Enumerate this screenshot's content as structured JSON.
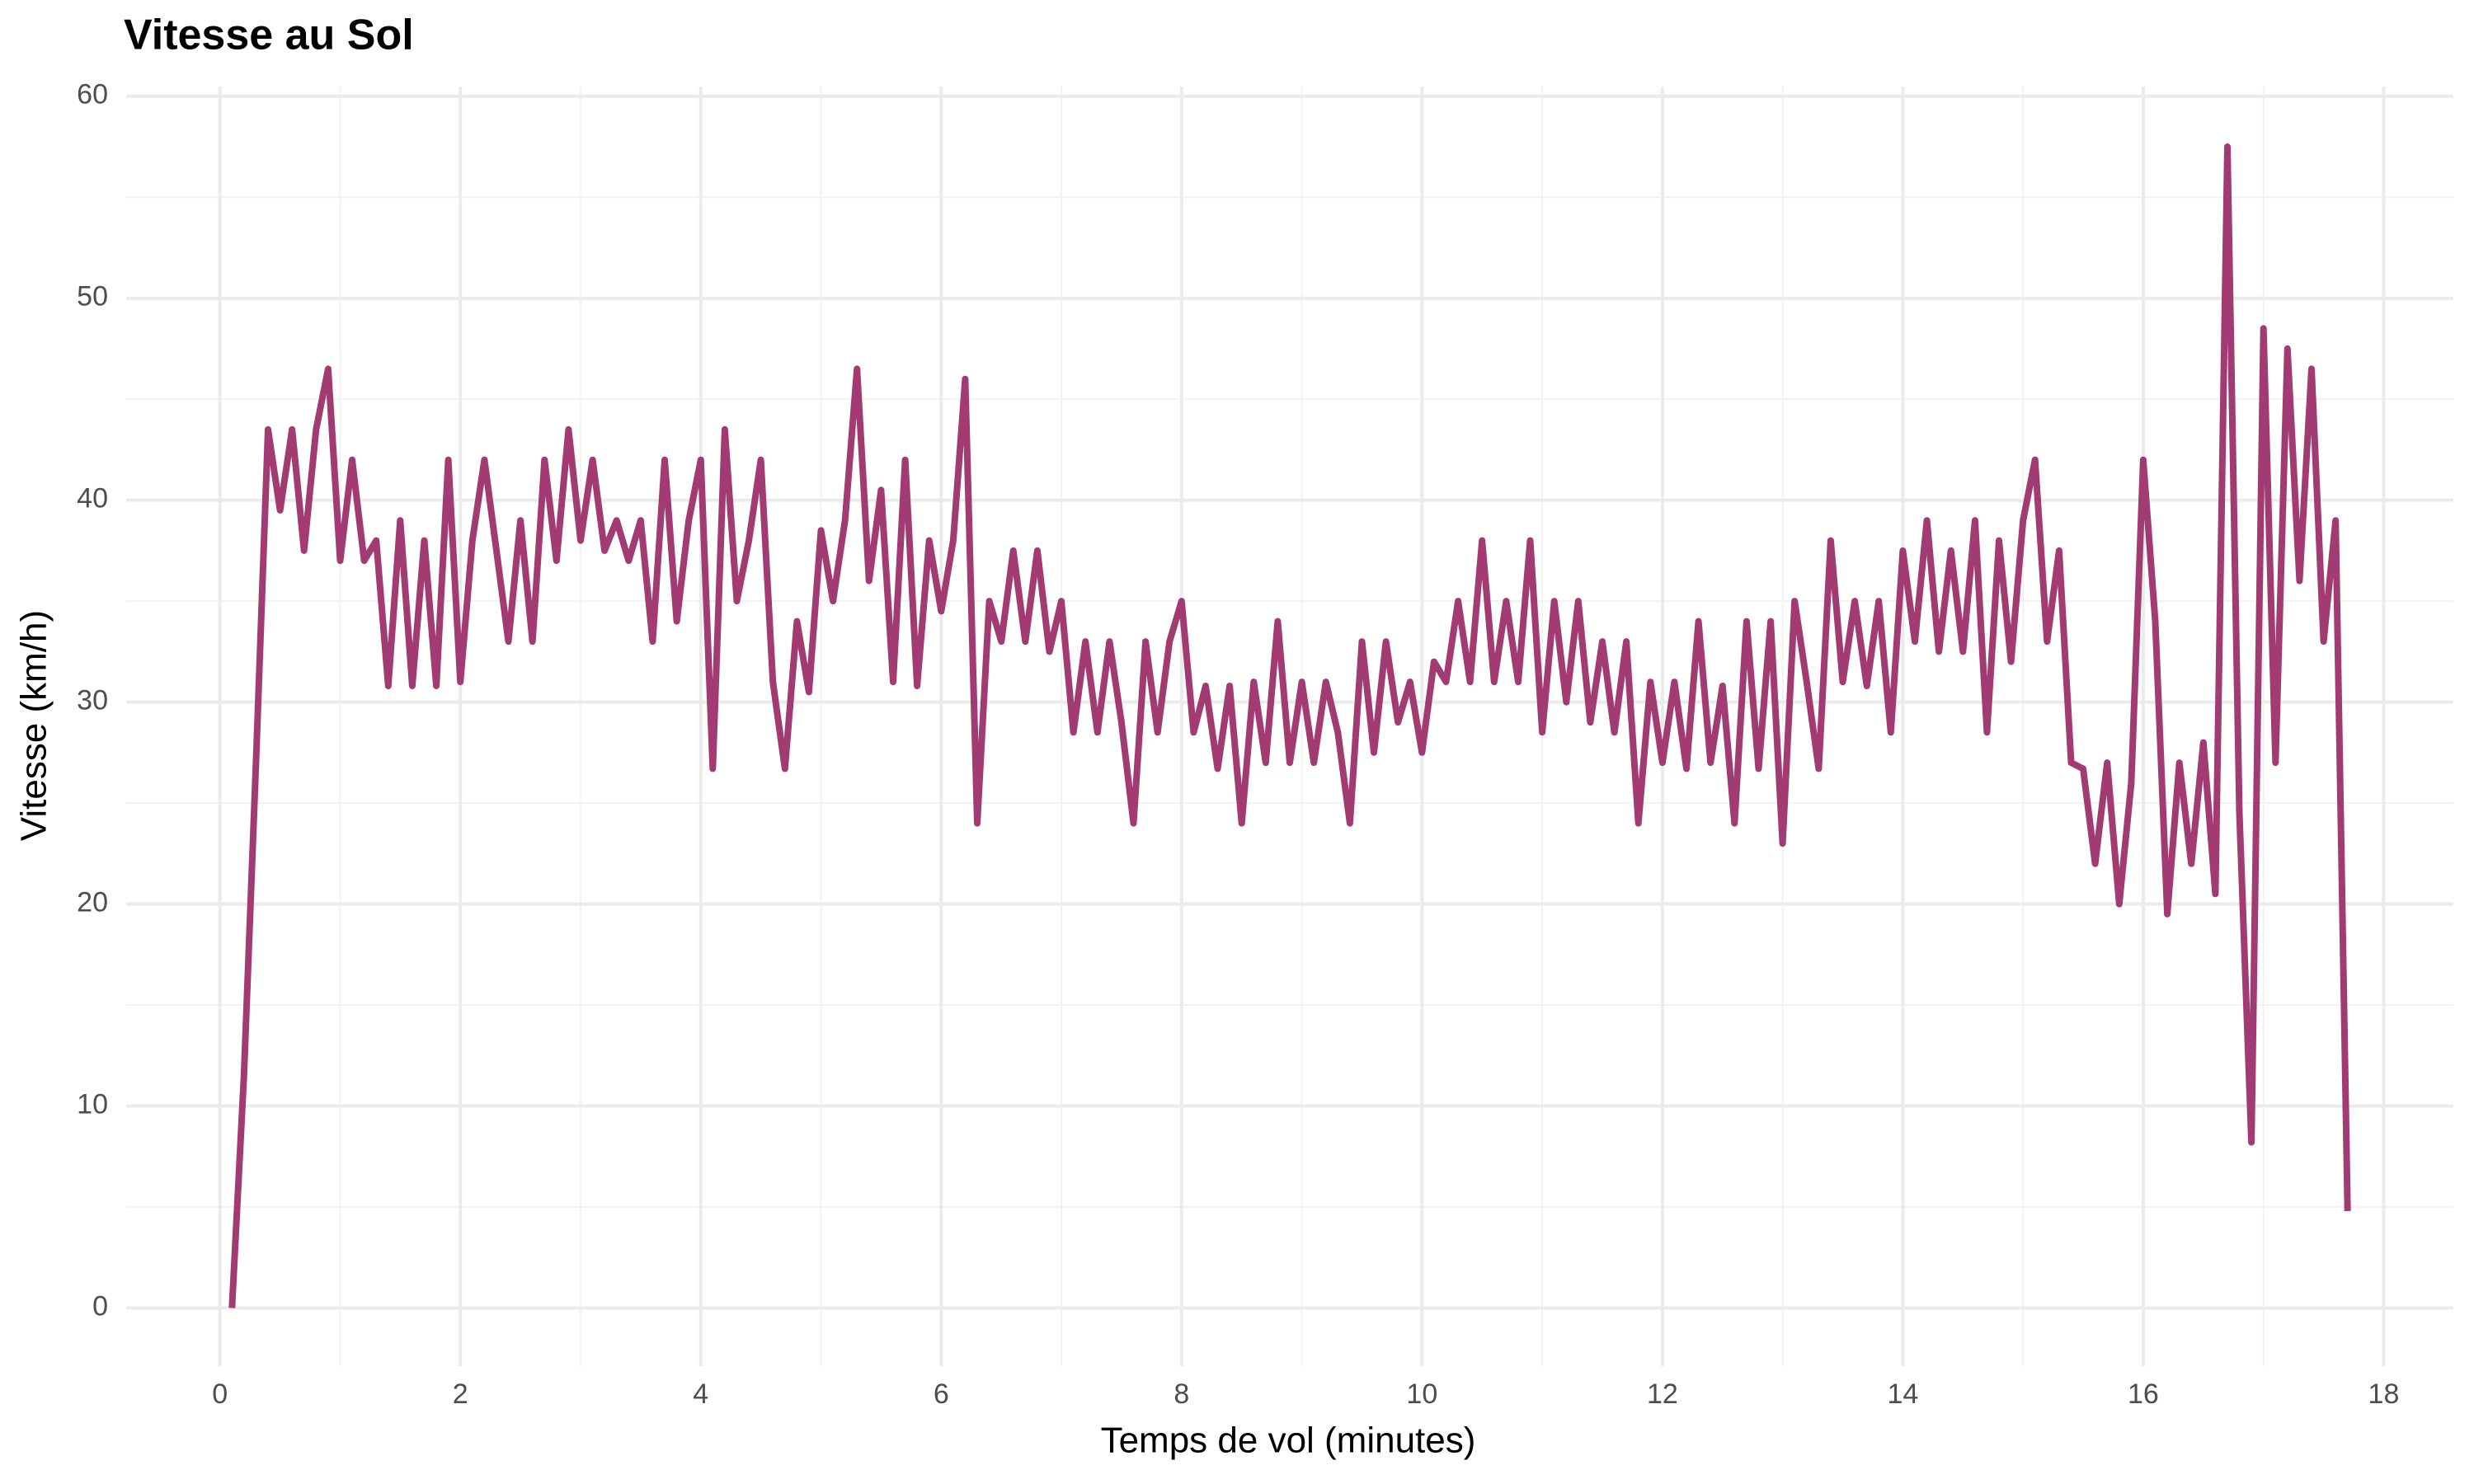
{
  "chart_data": {
    "type": "line",
    "title": "Vitesse au Sol",
    "x_label": "Temps de vol (minutes)",
    "y_label": "Vitesse (km/h)",
    "color": "#a23b72",
    "grid": true,
    "minor_grid": true,
    "xlim": [
      -0.78,
      18.58
    ],
    "ylim": [
      -2.88,
      60.48
    ],
    "xticks": [
      0,
      2,
      4,
      6,
      8,
      10,
      12,
      14,
      16,
      18
    ],
    "yticks": [
      0,
      10,
      20,
      30,
      40,
      50,
      60
    ],
    "x": [
      0.1,
      0.2,
      0.3,
      0.4,
      0.5,
      0.6,
      0.7,
      0.8,
      0.9,
      1.0,
      1.1,
      1.2,
      1.3,
      1.4,
      1.5,
      1.6,
      1.7,
      1.8,
      1.9,
      2.0,
      2.1,
      2.2,
      2.3,
      2.4,
      2.5,
      2.6,
      2.7,
      2.8,
      2.9,
      3.0,
      3.1,
      3.2,
      3.3,
      3.4,
      3.5,
      3.6,
      3.7,
      3.8,
      3.9,
      4.0,
      4.1,
      4.2,
      4.3,
      4.4,
      4.5,
      4.6,
      4.7,
      4.8,
      4.9,
      5.0,
      5.1,
      5.2,
      5.3,
      5.4,
      5.5,
      5.6,
      5.7,
      5.8,
      5.9,
      6.0,
      6.1,
      6.2,
      6.3,
      6.4,
      6.5,
      6.6,
      6.7,
      6.8,
      6.9,
      7.0,
      7.1,
      7.2,
      7.3,
      7.4,
      7.5,
      7.6,
      7.7,
      7.8,
      7.9,
      8.0,
      8.1,
      8.2,
      8.3,
      8.4,
      8.5,
      8.6,
      8.7,
      8.8,
      8.9,
      9.0,
      9.1,
      9.2,
      9.3,
      9.4,
      9.5,
      9.6,
      9.7,
      9.8,
      9.9,
      10.0,
      10.1,
      10.2,
      10.3,
      10.4,
      10.5,
      10.6,
      10.7,
      10.8,
      10.9,
      11.0,
      11.1,
      11.2,
      11.3,
      11.4,
      11.5,
      11.6,
      11.7,
      11.8,
      11.9,
      12.0,
      12.1,
      12.2,
      12.3,
      12.4,
      12.5,
      12.6,
      12.7,
      12.8,
      12.9,
      13.0,
      13.1,
      13.2,
      13.3,
      13.4,
      13.5,
      13.6,
      13.7,
      13.8,
      13.9,
      14.0,
      14.1,
      14.2,
      14.3,
      14.4,
      14.5,
      14.6,
      14.7,
      14.8,
      14.9,
      15.0,
      15.1,
      15.2,
      15.3,
      15.4,
      15.5,
      15.6,
      15.7,
      15.8,
      15.9,
      16.0,
      16.1,
      16.2,
      16.3,
      16.4,
      16.5,
      16.6,
      16.7,
      16.8,
      16.9,
      17.0,
      17.1,
      17.2,
      17.3,
      17.4,
      17.5,
      17.6,
      17.7
    ],
    "values": [
      0,
      11.5,
      27,
      43.5,
      39.5,
      43.5,
      37.5,
      43.5,
      46.5,
      37,
      42,
      37,
      38,
      30.8,
      39,
      30.8,
      38,
      30.8,
      42,
      31,
      38,
      42,
      37.5,
      33,
      39,
      33,
      42,
      37,
      43.5,
      38,
      42,
      37.5,
      39,
      37,
      39,
      33,
      42,
      34,
      39,
      42,
      26.7,
      43.5,
      35,
      38,
      42,
      31,
      26.7,
      34,
      30.5,
      38.5,
      35,
      39,
      46.5,
      36,
      40.5,
      31,
      42,
      30.8,
      38,
      34.5,
      38,
      46,
      24,
      35,
      33,
      37.5,
      33,
      37.5,
      32.5,
      35,
      28.5,
      33,
      28.5,
      33,
      29,
      24,
      33,
      28.5,
      33,
      35,
      28.5,
      30.8,
      26.7,
      30.8,
      24,
      31,
      27,
      34,
      27,
      31,
      27,
      31,
      28.5,
      24,
      33,
      27.5,
      33,
      29,
      31,
      27.5,
      32,
      31,
      35,
      31,
      38,
      31,
      35,
      31,
      38,
      28.5,
      35,
      30,
      35,
      29,
      33,
      28.5,
      33,
      24,
      31,
      27,
      31,
      26.7,
      34,
      27,
      30.8,
      24,
      34,
      26.7,
      34,
      23,
      35,
      31,
      26.7,
      38,
      31,
      35,
      30.8,
      35,
      28.5,
      37.5,
      33,
      39,
      32.5,
      37.5,
      32.5,
      39,
      28.5,
      38,
      32,
      39,
      42,
      33,
      37.5,
      27,
      26.7,
      22,
      27,
      20,
      26,
      42,
      34,
      19.5,
      27,
      22,
      28,
      20.5,
      57.5,
      24.5,
      8.2,
      48.5,
      27,
      47.5,
      36,
      46.5,
      33,
      39,
      4.8
    ]
  }
}
